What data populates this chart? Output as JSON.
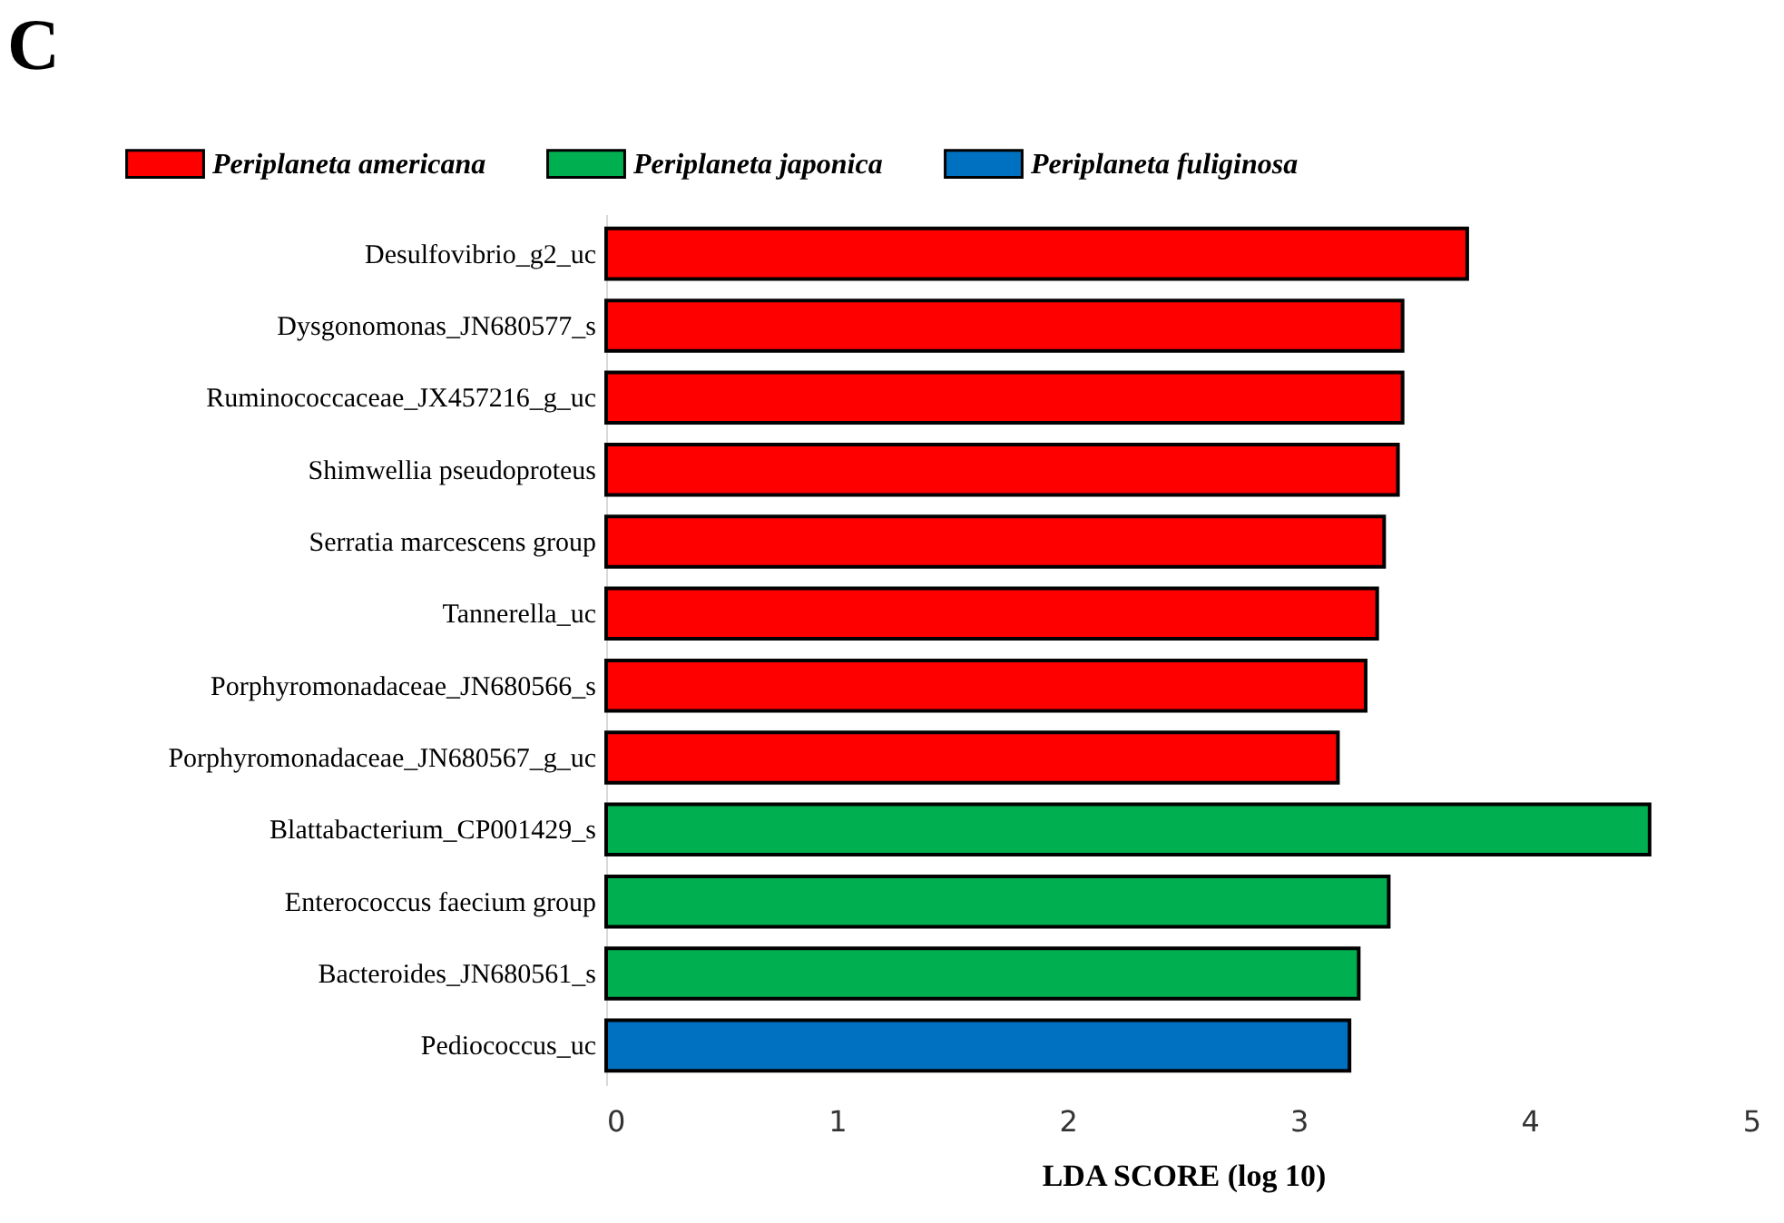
{
  "chart_data": {
    "type": "bar",
    "orientation": "horizontal",
    "title": "C",
    "xlabel": "LDA SCORE (log 10)",
    "categories": [
      "Desulfovibrio_g2_uc",
      "Dysgonomonas_JN680577_s",
      "Ruminococcaceae_JX457216_g_uc",
      "Shimwellia pseudoproteus",
      "Serratia marcescens group",
      "Tannerella_uc",
      "Porphyromonadaceae_JN680566_s",
      "Porphyromonadaceae_JN680567_g_uc",
      "Blattabacterium_CP001429_s",
      "Enterococcus faecium group",
      "Bacteroides_JN680561_s",
      "Pediococcus_uc"
    ],
    "series": [
      {
        "name": "Periplaneta americana",
        "color": "#ff0000",
        "values": [
          3.73,
          3.45,
          3.45,
          3.43,
          3.37,
          3.34,
          3.29,
          3.17,
          null,
          null,
          null,
          null
        ]
      },
      {
        "name": "Periplaneta japonica",
        "color": "#00b050",
        "values": [
          null,
          null,
          null,
          null,
          null,
          null,
          null,
          null,
          4.52,
          3.39,
          3.26,
          null
        ]
      },
      {
        "name": "Periplaneta fuliginosa",
        "color": "#0070c0",
        "values": [
          null,
          null,
          null,
          null,
          null,
          null,
          null,
          null,
          null,
          null,
          null,
          3.22
        ]
      }
    ],
    "xlim": [
      0,
      5
    ],
    "xticks": [
      0,
      1,
      2,
      3,
      4,
      5
    ],
    "grid": false,
    "legend": "top"
  }
}
